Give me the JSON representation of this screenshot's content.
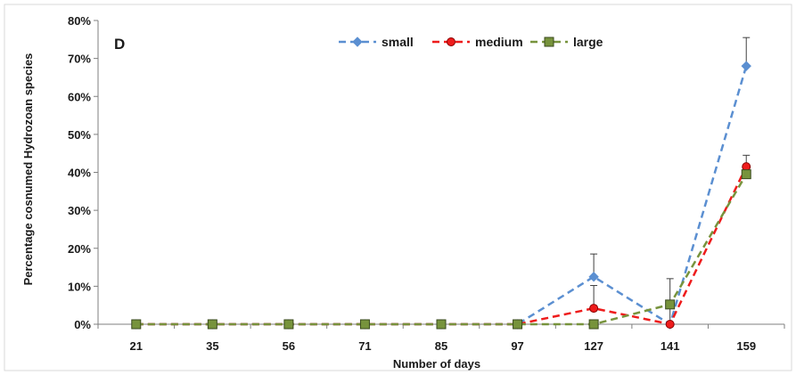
{
  "chart_data": {
    "type": "line",
    "panel_label": "D",
    "xlabel": "Number of days",
    "ylabel": "Percentage cosnumed Hydrozoan species",
    "categories": [
      "21",
      "35",
      "56",
      "71",
      "85",
      "97",
      "127",
      "141",
      "159"
    ],
    "ylim": [
      0,
      80
    ],
    "yticks": [
      "0%",
      "10%",
      "20%",
      "30%",
      "40%",
      "50%",
      "60%",
      "70%",
      "80%"
    ],
    "grid": false,
    "legend_position": "top-center",
    "series": [
      {
        "name": "small",
        "color": "#5b8fd1",
        "marker": "diamond",
        "line_style": "dashed",
        "values": [
          0,
          0,
          0,
          0,
          0,
          0,
          12.5,
          0,
          68
        ],
        "error": [
          0,
          0,
          0,
          0,
          0,
          0,
          6,
          12,
          7.5
        ]
      },
      {
        "name": "medium",
        "color": "#ee1c1c",
        "marker": "circle",
        "line_style": "dashed",
        "values": [
          0,
          0,
          0,
          0,
          0,
          0,
          4.2,
          0,
          41.5
        ],
        "error": [
          0,
          0,
          0,
          0,
          0,
          0,
          6,
          0,
          3
        ]
      },
      {
        "name": "large",
        "color": "#77933c",
        "marker": "square",
        "line_style": "dashed",
        "values": [
          0,
          0,
          0,
          0,
          0,
          0,
          0,
          5.2,
          39.5
        ],
        "error": [
          0,
          0,
          0,
          0,
          0,
          0,
          0,
          0,
          0
        ]
      }
    ]
  }
}
